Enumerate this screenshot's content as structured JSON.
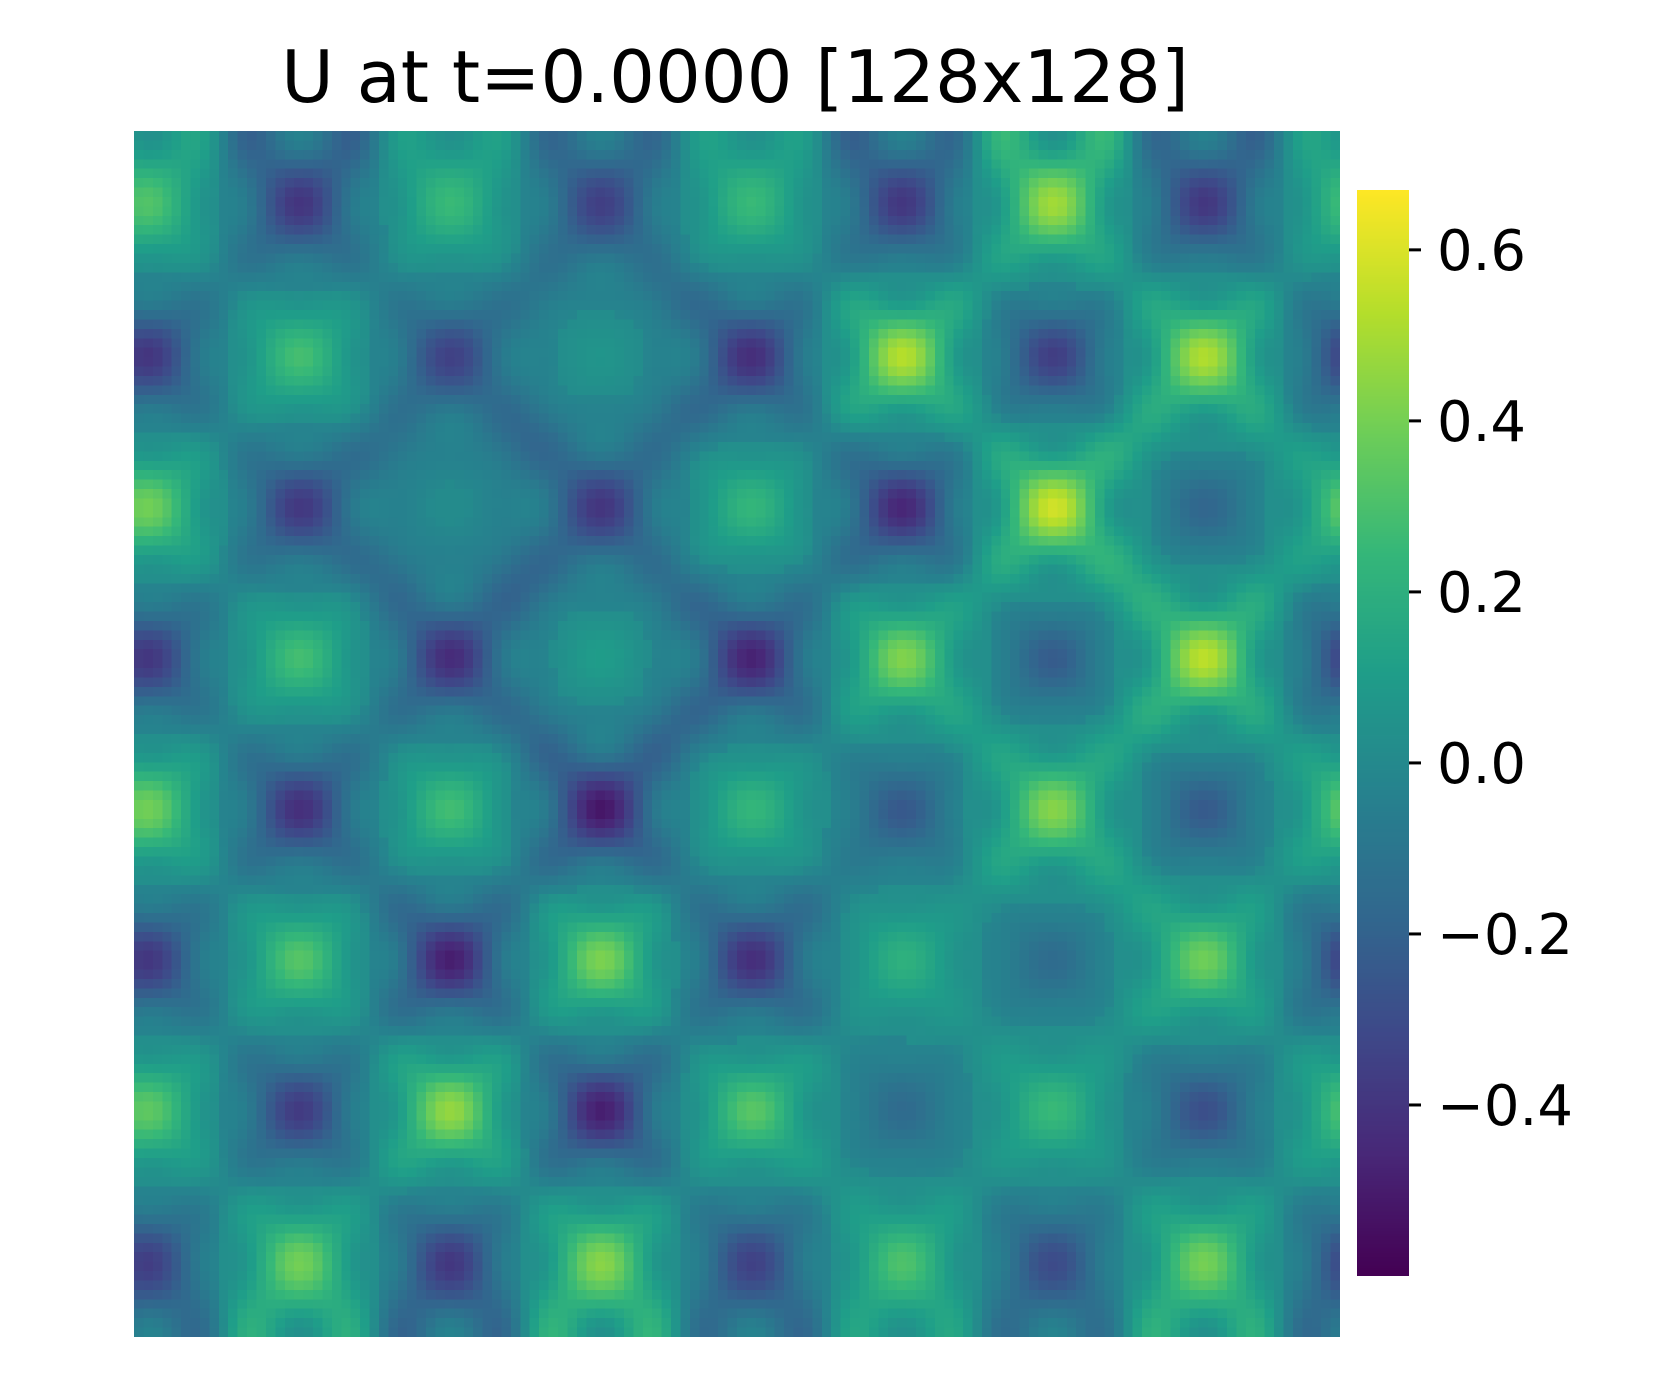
{
  "chart_data": {
    "type": "heatmap",
    "title": "U at t=0.0000 [128x128]",
    "xlabel": "",
    "ylabel": "",
    "axes_visible": false,
    "grid": false,
    "colormap": "viridis",
    "colormap_stops": [
      "#440154",
      "#482878",
      "#3e4989",
      "#31688e",
      "#26828e",
      "#1f9e89",
      "#35b779",
      "#6ece58",
      "#b5de2b",
      "#fde725"
    ],
    "value_range": [
      -0.6,
      0.67
    ],
    "n_rows": 8,
    "n_cols": 8,
    "grid_resolution": [
      128,
      128
    ],
    "blob_values": [
      [
        0.35,
        -0.45,
        0.3,
        -0.4,
        0.3,
        -0.45,
        0.55,
        -0.45
      ],
      [
        -0.45,
        0.35,
        -0.4,
        0.1,
        -0.5,
        0.62,
        -0.45,
        0.6
      ],
      [
        0.45,
        -0.45,
        0.05,
        -0.45,
        0.3,
        -0.55,
        0.67,
        -0.25
      ],
      [
        -0.45,
        0.35,
        -0.5,
        0.15,
        -0.55,
        0.5,
        -0.3,
        0.62
      ],
      [
        0.45,
        -0.5,
        0.35,
        -0.6,
        0.3,
        -0.3,
        0.5,
        -0.3
      ],
      [
        -0.45,
        0.4,
        -0.58,
        0.5,
        -0.5,
        0.25,
        -0.2,
        0.45
      ],
      [
        0.4,
        -0.45,
        0.55,
        -0.58,
        0.4,
        -0.2,
        0.3,
        -0.35
      ],
      [
        -0.4,
        0.45,
        -0.45,
        0.5,
        -0.4,
        0.35,
        -0.35,
        0.45
      ]
    ],
    "colorbar": {
      "ticks": [
        0.6,
        0.4,
        0.2,
        0.0,
        -0.2,
        -0.4
      ],
      "tick_labels": [
        "0.6",
        "0.4",
        "0.2",
        "0.0",
        "−0.2",
        "−0.4"
      ],
      "min": -0.6,
      "max": 0.67
    }
  }
}
